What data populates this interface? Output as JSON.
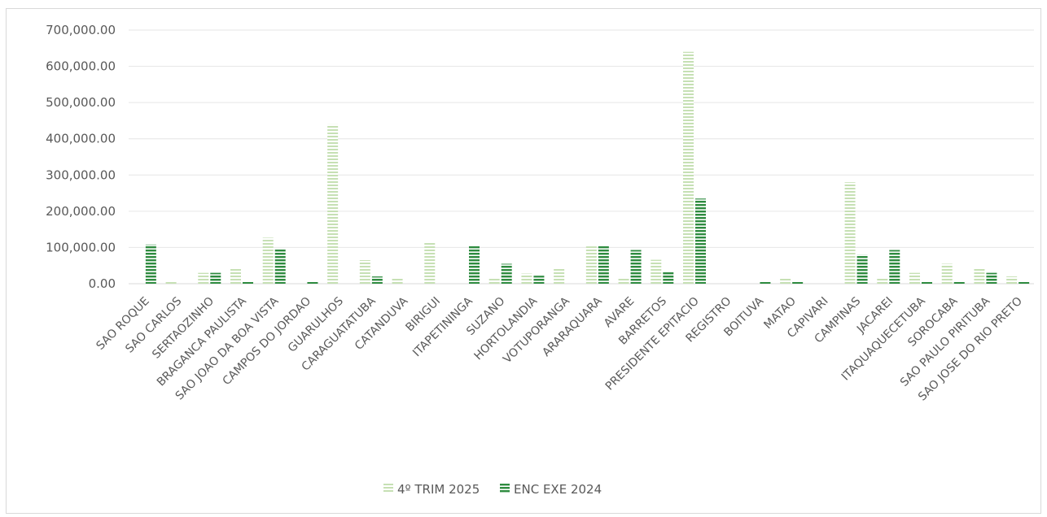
{
  "chart_data": {
    "type": "bar",
    "title": "",
    "xlabel": "",
    "ylabel": "",
    "ylim": [
      0,
      700000
    ],
    "yticks": [
      0,
      100000,
      200000,
      300000,
      400000,
      500000,
      600000,
      700000
    ],
    "ytick_labels": [
      "0.00",
      "100,000.00",
      "200,000.00",
      "300,000.00",
      "400,000.00",
      "500,000.00",
      "600,000.00",
      "700,000.00"
    ],
    "grid": true,
    "legend_position": "bottom",
    "categories": [
      "SAO ROQUE",
      "SAO CARLOS",
      "SERTAOZINHO",
      "BRAGANCA PAULISTA",
      "SAO JOAO DA BOA VISTA",
      "CAMPOS DO JORDAO",
      "GUARULHOS",
      "CARAGUATATUBA",
      "CATANDUVA",
      "BIRIGUI",
      "ITAPETININGA",
      "SUZANO",
      "HORTOLANDIA",
      "VOTUPORANGA",
      "ARARAQUARA",
      "AVARE",
      "BARRETOS",
      "PRESIDENTE EPITACIO",
      "REGISTRO",
      "BOITUVA",
      "MATAO",
      "CAPIVARI",
      "CAMPINAS",
      "JACAREI",
      "ITAQUAQUECETUBA",
      "SOROCABA",
      "SAO PAULO PIRITUBA",
      "SAO JOSE DO RIO PRETO"
    ],
    "series": [
      {
        "name": "4º TRIM 2025",
        "color": "#c6e0b4",
        "values": [
          0,
          5000,
          30000,
          42000,
          127000,
          0,
          440000,
          65000,
          18000,
          113000,
          0,
          15000,
          28000,
          42000,
          103000,
          18000,
          66000,
          640000,
          0,
          0,
          18000,
          0,
          280000,
          18000,
          30000,
          55000,
          42000,
          20000
        ]
      },
      {
        "name": "ENC EXE 2024",
        "color": "#2e8b3f",
        "values": [
          108000,
          0,
          30000,
          6000,
          95000,
          5000,
          0,
          20000,
          0,
          0,
          105000,
          55000,
          22000,
          0,
          105000,
          93000,
          32000,
          235000,
          0,
          6000,
          6000,
          0,
          80000,
          93000,
          6000,
          6000,
          30000,
          6000
        ]
      }
    ]
  }
}
